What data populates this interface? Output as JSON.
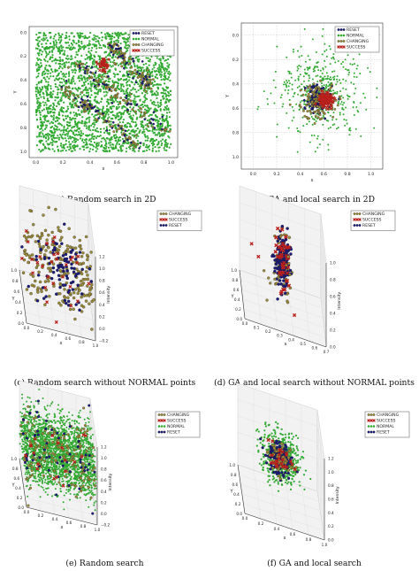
{
  "colors": {
    "RESET": "#1a1a7a",
    "NORMAL": "#33aa33",
    "CHANGING": "#9a8a3a",
    "SUCCESS": "#b8201c",
    "axis": "#333333",
    "grid": "#bbbbbb"
  },
  "chart_data": [
    {
      "id": "a",
      "type": "scatter",
      "caption": "(a) Random search in 2D",
      "xlabel": "x",
      "ylabel": "Y",
      "xlim": [
        -0.05,
        1.05
      ],
      "ylim": [
        -0.05,
        1.05
      ],
      "y_inverted": true,
      "grid": false,
      "xticks": [
        "0.0",
        "0.2",
        "0.4",
        "0.6",
        "0.8",
        "1.0"
      ],
      "yticks": [
        "0.0",
        "0.2",
        "0.4",
        "0.6",
        "0.8",
        "1.0"
      ],
      "legend": [
        "RESET",
        "NORMAL",
        "CHANGING",
        "SUCCESS"
      ],
      "legend_position": "top-right",
      "distribution": {
        "NORMAL": {
          "kind": "uniform",
          "n": 2600
        },
        "CHANGING": {
          "kind": "bands",
          "n": 240
        },
        "RESET": {
          "kind": "bands",
          "n": 110
        },
        "SUCCESS": {
          "kind": "clusters",
          "n": 40,
          "centers": [
            [
              0.5,
              0.28
            ]
          ]
        }
      }
    },
    {
      "id": "b",
      "type": "scatter",
      "caption": "(b) GA and local search in 2D",
      "xlabel": "x",
      "ylabel": "Y",
      "xlim": [
        -0.1,
        1.1
      ],
      "ylim": [
        -0.1,
        1.1
      ],
      "y_inverted": true,
      "grid": true,
      "xticks": [
        "0.0",
        "0.2",
        "0.4",
        "0.6",
        "0.8",
        "1.0"
      ],
      "yticks": [
        "0.0",
        "0.2",
        "0.4",
        "0.6",
        "0.8",
        "1.0"
      ],
      "legend": [
        "RESET",
        "NORMAL",
        "CHANGING",
        "SUCCESS"
      ],
      "legend_position": "top-right",
      "distribution": {
        "NORMAL": {
          "kind": "gauss",
          "n": 420,
          "center": [
            0.58,
            0.45
          ],
          "sd": 0.18
        },
        "RESET": {
          "kind": "gauss",
          "n": 160,
          "center": [
            0.55,
            0.52
          ],
          "sd": 0.05
        },
        "CHANGING": {
          "kind": "gauss",
          "n": 110,
          "center": [
            0.56,
            0.55
          ],
          "sd": 0.08
        },
        "SUCCESS": {
          "kind": "gauss",
          "n": 90,
          "center": [
            0.62,
            0.53
          ],
          "sd": 0.03
        }
      }
    },
    {
      "id": "c",
      "type": "scatter",
      "projection": "3d",
      "caption": "(c) Random search without NORMAL points",
      "xlabel": "x",
      "ylabel": "Y",
      "zlabel": "Intensity",
      "xticks": [
        "0.0",
        "0.2",
        "0.4",
        "0.6",
        "0.8",
        "1.0"
      ],
      "yticks": [
        "0.0",
        "0.2",
        "0.4",
        "0.6",
        "0.8",
        "1.0"
      ],
      "zticks": [
        "−0.2",
        "0.0",
        "0.2",
        "0.4",
        "0.6",
        "0.8",
        "1.0",
        "1.2"
      ],
      "legend": [
        "CHANGING",
        "SUCCESS",
        "RESET"
      ],
      "legend_position": "top-right",
      "distribution": {
        "CHANGING": {
          "kind": "spread",
          "n": 220
        },
        "SUCCESS": {
          "kind": "spread",
          "n": 30
        },
        "RESET": {
          "kind": "spread",
          "n": 90
        }
      }
    },
    {
      "id": "d",
      "type": "scatter",
      "projection": "3d",
      "caption": "(d) GA and local search without NORMAL points",
      "xlabel": "x",
      "ylabel": "Y",
      "zlabel": "Intensity",
      "xticks": [
        "0.0",
        "0.1",
        "0.2",
        "0.3",
        "0.4",
        "0.5",
        "0.6",
        "0.7"
      ],
      "yticks": [
        "0.0",
        "0.2",
        "0.4",
        "0.6",
        "0.8",
        "1.0"
      ],
      "zticks": [
        "0.0",
        "0.2",
        "0.4",
        "0.6",
        "0.8",
        "1.0"
      ],
      "legend": [
        "CHANGING",
        "SUCCESS",
        "RESET"
      ],
      "legend_position": "top-right",
      "distribution": {
        "RESET": {
          "kind": "column",
          "n": 180
        },
        "CHANGING": {
          "kind": "column",
          "n": 80
        },
        "SUCCESS": {
          "kind": "column",
          "n": 45
        }
      }
    },
    {
      "id": "e",
      "type": "scatter",
      "projection": "3d",
      "caption": "(e) Random search",
      "xlabel": "x",
      "ylabel": "Y",
      "zlabel": "Intensity",
      "xticks": [
        "0.0",
        "0.2",
        "0.4",
        "0.6",
        "0.8",
        "1.0"
      ],
      "yticks": [
        "0.0",
        "0.2",
        "0.4",
        "0.6",
        "0.8",
        "1.0"
      ],
      "zticks": [
        "−0.2",
        "0.0",
        "0.2",
        "0.4",
        "0.6",
        "0.8",
        "1.0",
        "1.2"
      ],
      "legend": [
        "CHANGING",
        "SUCCESS",
        "NORMAL",
        "RESET"
      ],
      "legend_position": "top-right",
      "distribution": {
        "NORMAL": {
          "kind": "spread",
          "n": 2200
        },
        "CHANGING": {
          "kind": "spread",
          "n": 150
        },
        "RESET": {
          "kind": "spread",
          "n": 60
        },
        "SUCCESS": {
          "kind": "spread",
          "n": 20
        }
      }
    },
    {
      "id": "f",
      "type": "scatter",
      "projection": "3d",
      "caption": "(f) GA and local search",
      "xlabel": "x",
      "ylabel": "Y",
      "zlabel": "Intensity",
      "xticks": [
        "0.0",
        "0.2",
        "0.4",
        "0.6",
        "0.8",
        "1.0"
      ],
      "yticks": [
        "0.0",
        "0.2",
        "0.4",
        "0.6",
        "0.8",
        "1.0"
      ],
      "zticks": [
        "0.0",
        "0.2",
        "0.4",
        "0.6",
        "0.8",
        "1.0",
        "1.2"
      ],
      "legend": [
        "CHANGING",
        "SUCCESS",
        "NORMAL",
        "RESET"
      ],
      "legend_position": "top-right",
      "distribution": {
        "NORMAL": {
          "kind": "core",
          "n": 500
        },
        "RESET": {
          "kind": "core",
          "n": 180
        },
        "CHANGING": {
          "kind": "core",
          "n": 60
        },
        "SUCCESS": {
          "kind": "core",
          "n": 25
        }
      }
    }
  ]
}
